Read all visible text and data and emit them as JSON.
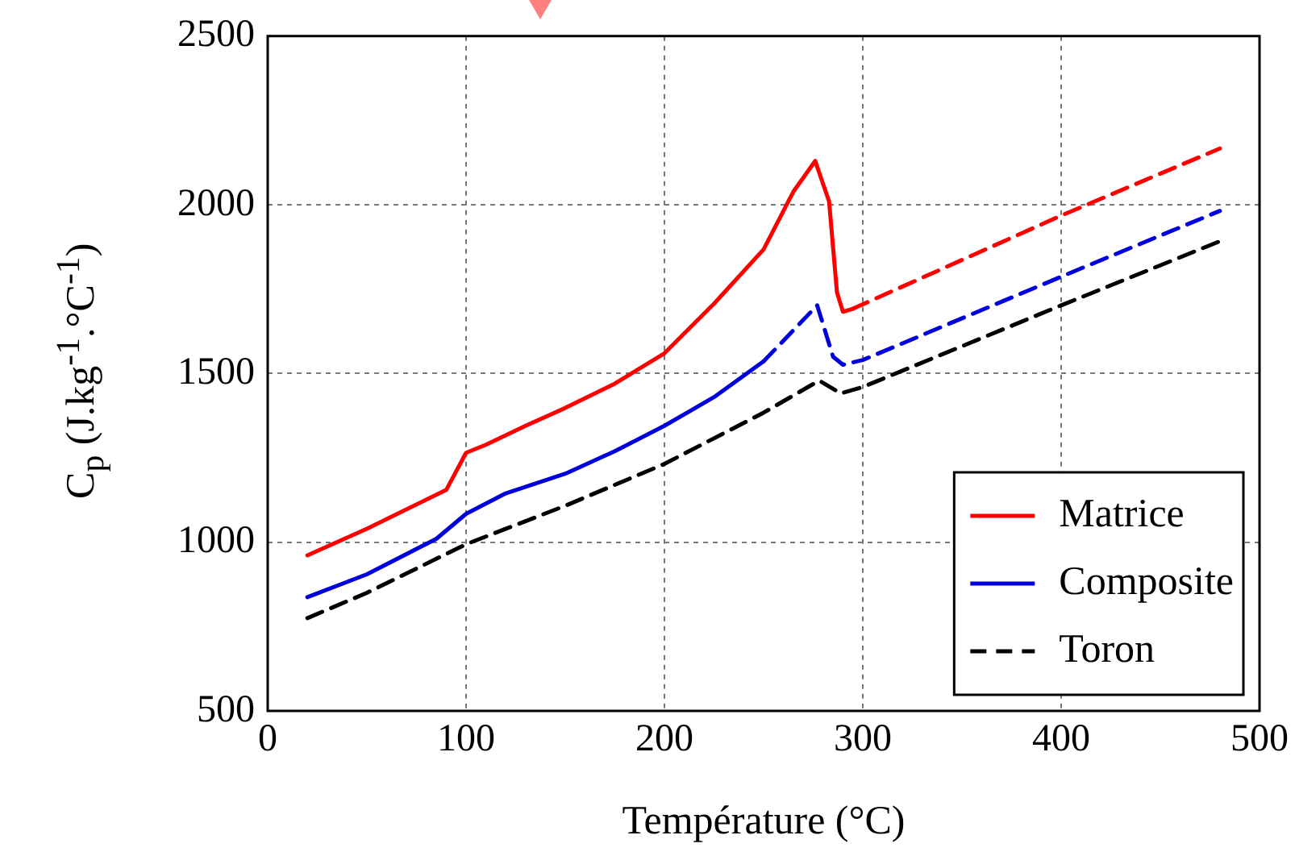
{
  "chart_data": {
    "type": "line",
    "xlabel": "Température (°C)",
    "ylabel": "C$_{p}$ (J.kg$^{-1}$.°C$^{-1}$)",
    "xlim": [
      0,
      500
    ],
    "ylim": [
      500,
      2500
    ],
    "xticks": [
      0,
      100,
      200,
      300,
      400,
      500
    ],
    "yticks": [
      500,
      1000,
      1500,
      2000,
      2500
    ],
    "grid": true,
    "legend": "bottom right",
    "marker": "none",
    "series": [
      {
        "name": "Matrice",
        "color": "#ff0000",
        "line_style": "solid",
        "x": [
          20,
          50,
          90,
          100,
          110,
          130,
          150,
          175,
          200,
          225,
          250,
          265,
          276,
          283,
          287,
          290,
          295
        ],
        "values": [
          961,
          1040,
          1155,
          1265,
          1289,
          1345,
          1398,
          1470,
          1560,
          1707,
          1868,
          2039,
          2130,
          2010,
          1740,
          1683,
          1692
        ]
      },
      {
        "color": "#ff0000",
        "line_style": "dashed",
        "x": [
          295,
          400,
          480
        ],
        "values": [
          1692,
          1968,
          2167
        ]
      },
      {
        "name": "Composite",
        "color": "#0000dd",
        "line_style": "solid",
        "x": [
          20,
          50,
          85,
          100,
          120,
          150,
          175,
          200,
          225,
          250
        ],
        "values": [
          837,
          905,
          1010,
          1084,
          1145,
          1203,
          1270,
          1345,
          1430,
          1536
        ]
      },
      {
        "color": "#0000dd",
        "line_style": "dashed",
        "x": [
          250,
          277,
          285,
          290,
          300,
          400,
          480
        ],
        "values": [
          1536,
          1702,
          1550,
          1526,
          1540,
          1787,
          1982
        ]
      },
      {
        "name": "Toron",
        "color": "#000000",
        "line_style": "dashed",
        "x": [
          20,
          50,
          100,
          150,
          200,
          250,
          278,
          289,
          300,
          400,
          480
        ],
        "values": [
          775,
          850,
          994,
          1108,
          1232,
          1384,
          1479,
          1441,
          1460,
          1702,
          1892
        ]
      }
    ]
  }
}
